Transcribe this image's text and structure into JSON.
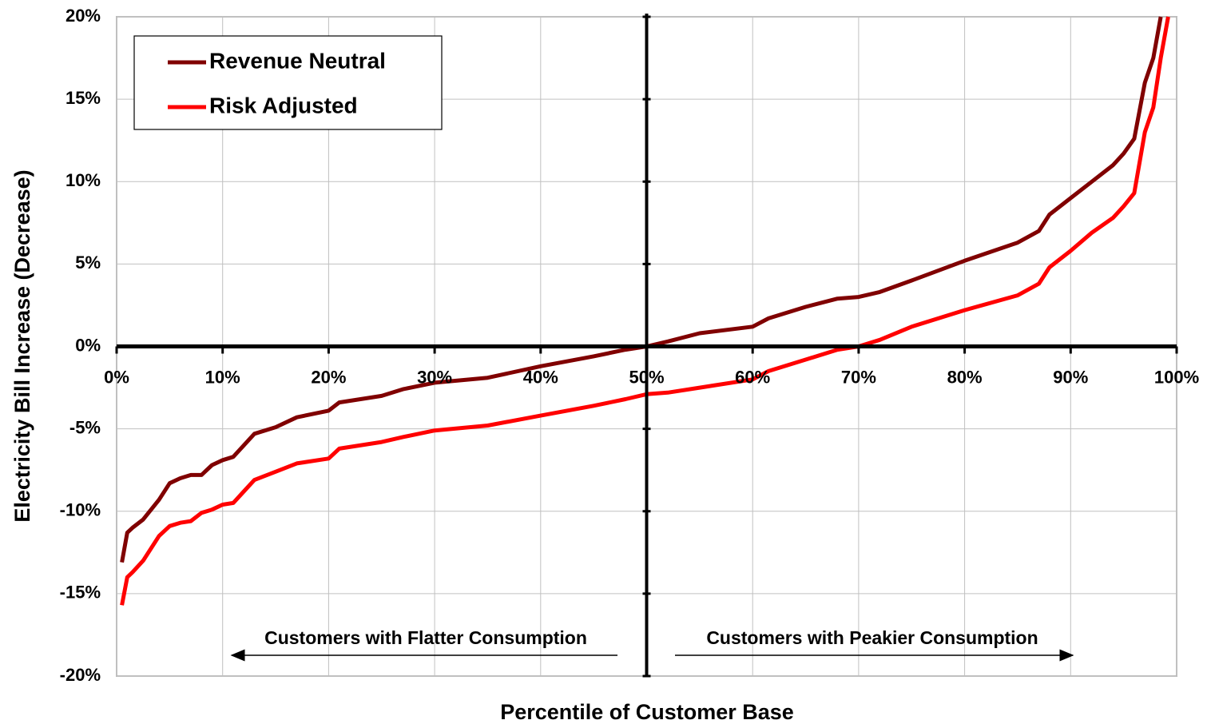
{
  "chart_data": {
    "type": "line",
    "xlabel": "Percentile of Customer Base",
    "ylabel": "Electricity Bill Increase (Decrease)",
    "x": [
      0.5,
      1,
      1.5,
      2.5,
      4,
      5,
      6,
      7,
      8,
      9,
      10,
      11,
      12,
      13,
      15,
      17,
      20,
      21,
      25,
      27,
      30,
      35,
      40,
      45,
      48,
      50,
      52,
      55,
      60,
      61.5,
      65,
      68,
      70,
      72,
      75,
      80,
      85,
      87,
      88,
      90,
      92,
      94,
      95,
      96,
      97,
      97.8,
      98.5,
      99.2
    ],
    "series": [
      {
        "name": "Revenue Neutral",
        "color": "#800000",
        "values": [
          -13.1,
          -11.3,
          -11.0,
          -10.5,
          -9.3,
          -8.3,
          -8.0,
          -7.8,
          -7.8,
          -7.2,
          -6.9,
          -6.7,
          -6.0,
          -5.3,
          -4.9,
          -4.3,
          -3.9,
          -3.4,
          -3.0,
          -2.6,
          -2.2,
          -1.9,
          -1.2,
          -0.6,
          -0.2,
          0,
          0.3,
          0.8,
          1.2,
          1.7,
          2.4,
          2.9,
          3.0,
          3.3,
          4.0,
          5.2,
          6.3,
          7.0,
          8.0,
          9.0,
          10.0,
          11.0,
          11.7,
          12.6,
          16.0,
          17.5,
          20,
          null
        ]
      },
      {
        "name": "Risk Adjusted",
        "color": "#ff0000",
        "values": [
          -15.7,
          -14.0,
          -13.7,
          -13.0,
          -11.5,
          -10.9,
          -10.7,
          -10.6,
          -10.1,
          -9.9,
          -9.6,
          -9.5,
          -8.8,
          -8.1,
          -7.6,
          -7.1,
          -6.8,
          -6.2,
          -5.8,
          -5.5,
          -5.1,
          -4.8,
          -4.2,
          -3.6,
          -3.2,
          -2.9,
          -2.8,
          -2.5,
          -2.0,
          -1.5,
          -0.8,
          -0.2,
          0.0,
          0.4,
          1.2,
          2.2,
          3.1,
          3.8,
          4.8,
          5.8,
          6.9,
          7.8,
          8.5,
          9.3,
          13.0,
          14.5,
          17.5,
          20
        ]
      }
    ],
    "xlim": [
      0,
      100
    ],
    "ylim": [
      -20,
      20
    ],
    "xticks": [
      {
        "value": 0,
        "label": "0%"
      },
      {
        "value": 10,
        "label": "10%"
      },
      {
        "value": 20,
        "label": "20%"
      },
      {
        "value": 30,
        "label": "30%"
      },
      {
        "value": 40,
        "label": "40%"
      },
      {
        "value": 50,
        "label": "50%"
      },
      {
        "value": 60,
        "label": "60%"
      },
      {
        "value": 70,
        "label": "70%"
      },
      {
        "value": 80,
        "label": "80%"
      },
      {
        "value": 90,
        "label": "90%"
      },
      {
        "value": 100,
        "label": "100%"
      }
    ],
    "yticks": [
      {
        "value": -20,
        "label": "-20%"
      },
      {
        "value": -15,
        "label": "-15%"
      },
      {
        "value": -10,
        "label": "-10%"
      },
      {
        "value": -5,
        "label": "-5%"
      },
      {
        "value": 0,
        "label": "0%"
      },
      {
        "value": 5,
        "label": "5%"
      },
      {
        "value": 10,
        "label": "10%"
      },
      {
        "value": 15,
        "label": "15%"
      },
      {
        "value": 20,
        "label": "20%"
      }
    ],
    "x_axis_at": 0,
    "y_axis_at": 50,
    "grid": true,
    "legend": "top-left",
    "annotations": [
      "Customers with Flatter Consumption",
      "Customers with Peakier Consumption"
    ]
  }
}
